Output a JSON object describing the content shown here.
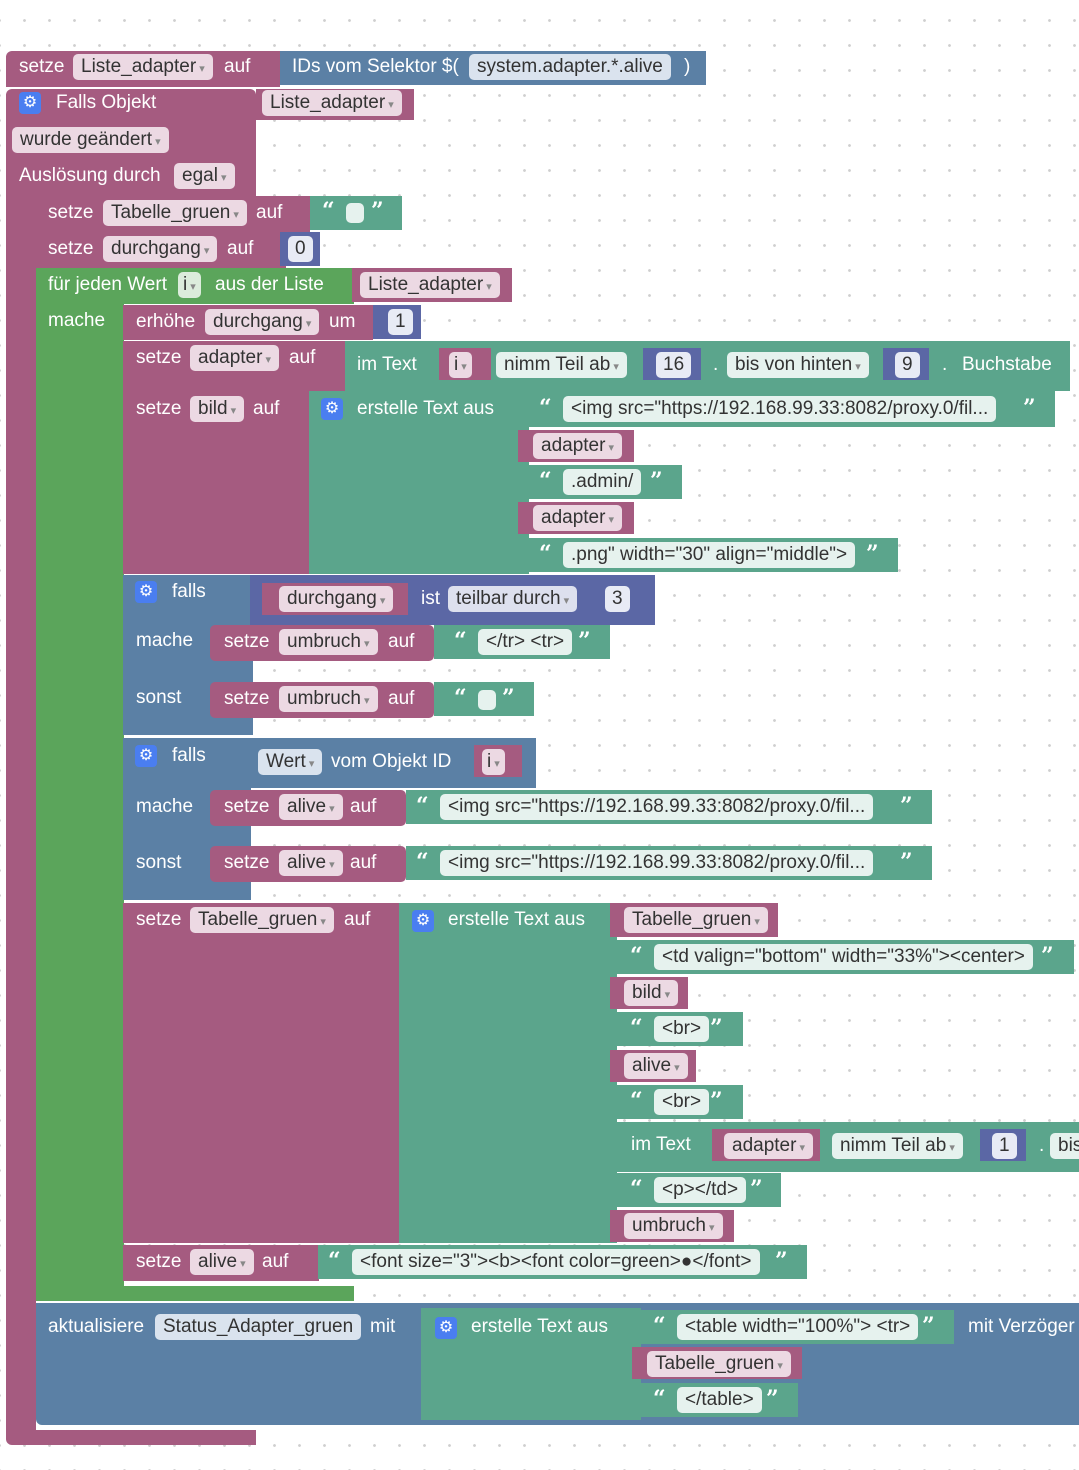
{
  "blocks": {
    "b1": {
      "set": "setze",
      "var": "Liste_adapter",
      "on": "auf",
      "selector_label": "IDs vom Selektor $(",
      "selector_value": "system.adapter.*.alive",
      "close": ")"
    },
    "trigger": {
      "label": "Falls Objekt",
      "object": "Liste_adapter",
      "changed": "wurde geändert",
      "trigger_label": "Auslösung durch",
      "trigger_value": "egal"
    },
    "b2": {
      "set": "setze",
      "var": "Tabelle_gruen",
      "on": "auf",
      "value": ""
    },
    "b3": {
      "set": "setze",
      "var": "durchgang",
      "on": "auf",
      "value": "0"
    },
    "loop": {
      "label": "für jeden Wert",
      "var": "i",
      "from": "aus der Liste",
      "list": "Liste_adapter",
      "do": "mache"
    },
    "inc": {
      "label": "erhöhe",
      "var": "durchgang",
      "by": "um",
      "value": "1"
    },
    "sub": {
      "set": "setze",
      "var": "adapter",
      "on": "auf",
      "in_text": "im Text",
      "text_var": "i",
      "take_from": "nimm Teil ab",
      "from_value": "16",
      "dot1": ".",
      "to": "bis von hinten",
      "to_value": "9",
      "dot2": ".",
      "unit": "Buchstabe"
    },
    "bild": {
      "set": "setze",
      "var": "bild",
      "on": "auf",
      "create": "erstelle Text aus",
      "part1": "<img src=\"https://192.168.99.33:8082/proxy.0/fil...",
      "part2": "adapter",
      "part3": ".admin/",
      "part4": "adapter",
      "part5": ".png\" width=\"30\" align=\"middle\">"
    },
    "if1": {
      "if": "falls",
      "var": "durchgang",
      "is": "ist",
      "op": "teilbar durch",
      "value": "3",
      "then": "mache",
      "then_set": "setze",
      "then_var": "umbruch",
      "then_on": "auf",
      "then_text": "</tr> <tr>",
      "else": "sonst",
      "else_set": "setze",
      "else_var": "umbruch",
      "else_on": "auf",
      "else_text": ""
    },
    "if2": {
      "if": "falls",
      "value_label": "Wert",
      "from_obj": "vom Objekt ID",
      "obj_var": "i",
      "then": "mache",
      "then_set": "setze",
      "then_var": "alive",
      "then_on": "auf",
      "then_text": "<img src=\"https://192.168.99.33:8082/proxy.0/fil...",
      "else": "sonst",
      "else_set": "setze",
      "else_var": "alive",
      "else_on": "auf",
      "else_text": "<img src=\"https://192.168.99.33:8082/proxy.0/fil..."
    },
    "tab": {
      "set": "setze",
      "var": "Tabelle_gruen",
      "on": "auf",
      "create": "erstelle Text aus",
      "p1": "Tabelle_gruen",
      "p2": "<td valign=\"bottom\" width=\"33%\"><center>",
      "p3": "bild",
      "p4": "<br>",
      "p5": "alive",
      "p6": "<br>",
      "in_text": "im Text",
      "text_var": "adapter",
      "take_from": "nimm Teil ab",
      "from_value": "1",
      "dot": ".",
      "cut": "bis",
      "p8": "<p></td>",
      "p9": "umbruch"
    },
    "alive2": {
      "set": "setze",
      "var": "alive",
      "on": "auf",
      "text": "<font size=\"3\"><b><font color=green>●</font>"
    },
    "upd": {
      "label": "aktualisiere",
      "var": "Status_Adapter_gruen",
      "with": "mit",
      "create": "erstelle Text aus",
      "p1": "<table width=\"100%\"> <tr>",
      "p2": "Tabelle_gruen",
      "p3": "</table>",
      "delay": "mit Verzöger"
    }
  },
  "colors": {
    "variables": "#a55b80",
    "loops": "#5ba55b",
    "objects": "#5b80a5",
    "text": "#5ba58c",
    "math": "#5b67a5",
    "mutator": "#4a7ef0"
  }
}
